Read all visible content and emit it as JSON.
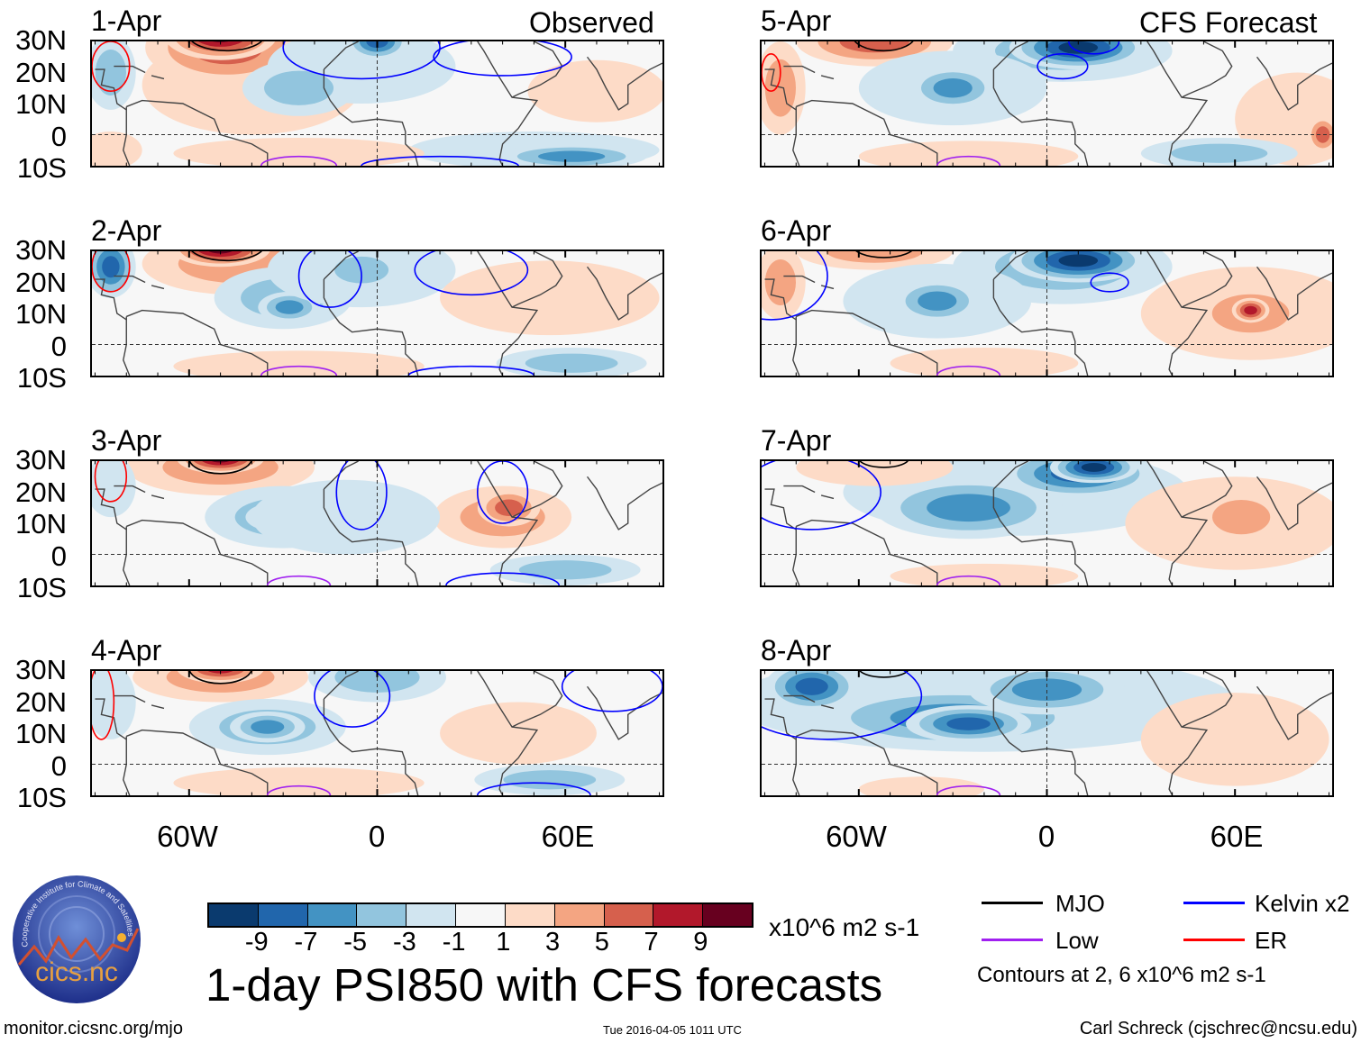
{
  "headers": {
    "left": "Observed",
    "right": "CFS Forecast"
  },
  "panels": {
    "left": [
      "1-Apr",
      "2-Apr",
      "3-Apr",
      "4-Apr"
    ],
    "right": [
      "5-Apr",
      "6-Apr",
      "7-Apr",
      "8-Apr"
    ]
  },
  "lat_labels": [
    "30N",
    "20N",
    "10N",
    "0",
    "10S"
  ],
  "lon_labels": [
    "60W",
    "0",
    "60E"
  ],
  "colorbar": {
    "colors": [
      "#0a3a6e",
      "#2166ac",
      "#4393c3",
      "#92c5de",
      "#d1e5f0",
      "#f7f7f7",
      "#fddbc7",
      "#f4a582",
      "#d6604d",
      "#b2182b",
      "#67001f"
    ],
    "ticks": [
      "-9",
      "-7",
      "-5",
      "-3",
      "-1",
      "1",
      "3",
      "5",
      "7",
      "9"
    ],
    "units": "x10^6 m2 s-1"
  },
  "title": "1-day PSI850 with CFS forecasts",
  "legend": {
    "items": [
      {
        "label": "MJO",
        "color": "#000000"
      },
      {
        "label": "Kelvin x2",
        "color": "#0000ff"
      },
      {
        "label": "Low",
        "color": "#a020f0"
      },
      {
        "label": "ER",
        "color": "#ff0000"
      }
    ],
    "note": "Contours at 2, 6 x10^6 m2 s-1"
  },
  "logo": {
    "text": "cics.nc",
    "ring_text": "Cooperative Institute for Climate and Satellites"
  },
  "footer": {
    "url": "monitor.cicsnc.org/mjo",
    "timestamp": "Tue 2016-04-05 1011 UTC",
    "author": "Carl Schreck (cjschrec@ncsu.edu)"
  }
}
